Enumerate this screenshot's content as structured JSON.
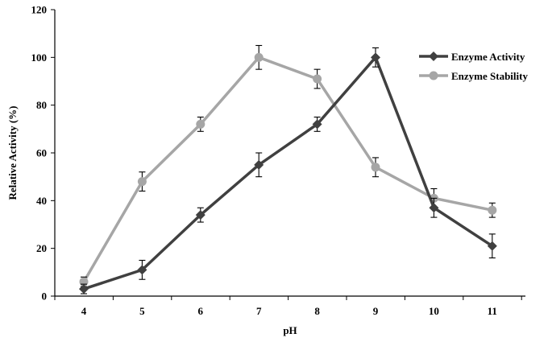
{
  "chart_data": {
    "type": "line",
    "xlabel": "pH",
    "ylabel": "Relative Activity (%)",
    "x": [
      4,
      5,
      6,
      7,
      8,
      9,
      10,
      11
    ],
    "x_tick_labels": [
      "4",
      "5",
      "6",
      "7",
      "8",
      "9",
      "10",
      "11"
    ],
    "ylim": [
      0,
      120
    ],
    "y_ticks": [
      0,
      20,
      40,
      60,
      80,
      100,
      120
    ],
    "y_tick_labels": [
      "0",
      "20",
      "40",
      "60",
      "80",
      "100",
      "120"
    ],
    "grid": false,
    "legend_position": "top-right",
    "series": [
      {
        "name": "Enzyme Activity",
        "color": "#404040",
        "marker": "diamond",
        "values": [
          3,
          11,
          34,
          55,
          72,
          100,
          37,
          21
        ],
        "errors": [
          2,
          4,
          3,
          5,
          3,
          4,
          4,
          5
        ]
      },
      {
        "name": "Enzyme Stability",
        "color": "#a6a6a6",
        "marker": "circle",
        "values": [
          6,
          48,
          72,
          100,
          91,
          54,
          41,
          36
        ],
        "errors": [
          2,
          4,
          3,
          5,
          4,
          4,
          4,
          3
        ]
      }
    ]
  }
}
